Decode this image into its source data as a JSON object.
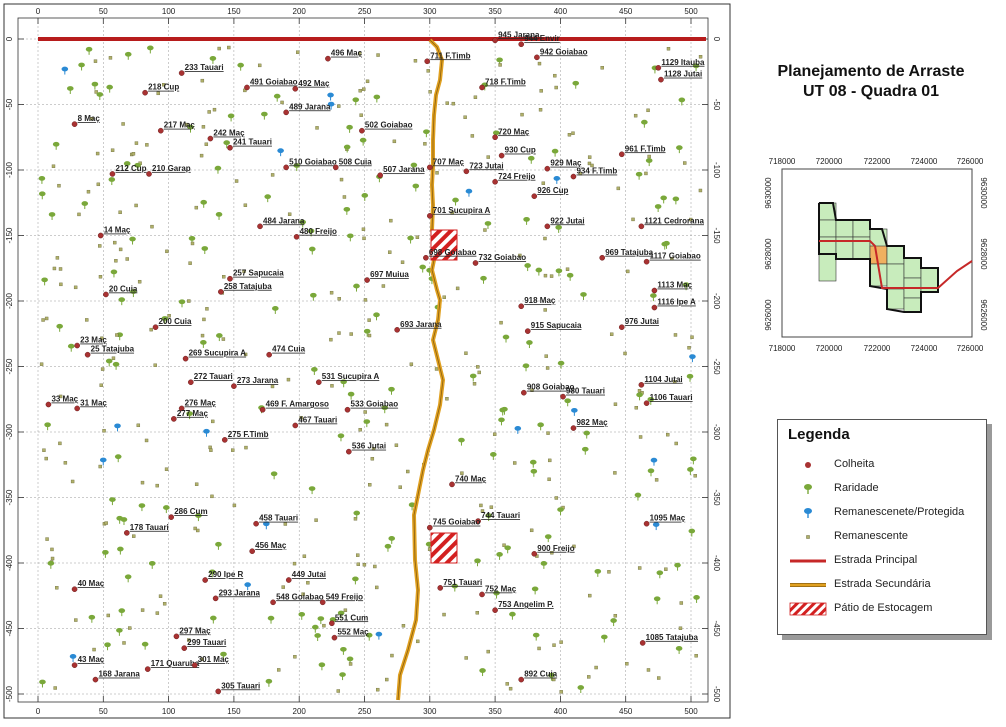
{
  "title": {
    "line1": "Planejamento de Arraste",
    "line2": "UT 08 - Quadra 01"
  },
  "axes": {
    "x_ticks": [
      "0",
      "50",
      "100",
      "150",
      "200",
      "250",
      "300",
      "350",
      "400",
      "450",
      "500"
    ],
    "y_ticks": [
      "0",
      "-50",
      "-100",
      "-150",
      "-200",
      "-250",
      "-300",
      "-350",
      "-400",
      "-450",
      "-500"
    ]
  },
  "legend": {
    "title": "Legenda",
    "items": [
      {
        "label": "Colheita",
        "symbol": "dot",
        "color": "#a83232"
      },
      {
        "label": "Raridade",
        "symbol": "tree",
        "color": "#7aa83a"
      },
      {
        "label": "Remanescenete/Protegida",
        "symbol": "tree",
        "color": "#2a8ad4"
      },
      {
        "label": "Remanescente",
        "symbol": "square",
        "color": "#b0b06a"
      },
      {
        "label": "Estrada Principal",
        "symbol": "line",
        "color": "#c62828"
      },
      {
        "label": "Estrada Secundária",
        "symbol": "line2",
        "color": "#e0a020"
      },
      {
        "label": "Pátio de Estocagem",
        "symbol": "hatch",
        "color": "#d02020"
      }
    ]
  },
  "inset": {
    "x_ticks": [
      "718000",
      "720000",
      "722000",
      "724000",
      "726000"
    ],
    "y_ticks": [
      "9630000",
      "9628000",
      "9626000"
    ]
  },
  "trees": [
    {
      "label": "945 Jarana",
      "x": 350,
      "y": -1
    },
    {
      "label": "944 Envir",
      "x": 370,
      "y": -4
    },
    {
      "label": "942 Goiabao",
      "x": 382,
      "y": -14
    },
    {
      "label": "1129 Itauba",
      "x": 475,
      "y": -22
    },
    {
      "label": "1128 Jutai",
      "x": 477,
      "y": -31
    },
    {
      "label": "711 F.Timb",
      "x": 298,
      "y": -17
    },
    {
      "label": "496 Maç",
      "x": 222,
      "y": -15
    },
    {
      "label": "233 Tauari",
      "x": 110,
      "y": -26
    },
    {
      "label": "491 Goiabao",
      "x": 160,
      "y": -37
    },
    {
      "label": "492 Maç",
      "x": 197,
      "y": -38
    },
    {
      "label": "718 F.Timb",
      "x": 340,
      "y": -37
    },
    {
      "label": "218 Cup",
      "x": 82,
      "y": -41
    },
    {
      "label": "489 Jarana",
      "x": 190,
      "y": -56
    },
    {
      "label": "502 Goiabao",
      "x": 248,
      "y": -70
    },
    {
      "label": "8 Maç",
      "x": 28,
      "y": -65
    },
    {
      "label": "217 Maç",
      "x": 94,
      "y": -70
    },
    {
      "label": "242 Maç",
      "x": 132,
      "y": -76
    },
    {
      "label": "241 Tauari",
      "x": 147,
      "y": -83
    },
    {
      "label": "720 Maç",
      "x": 350,
      "y": -75
    },
    {
      "label": "930 Cup",
      "x": 355,
      "y": -89
    },
    {
      "label": "961 F.Timb",
      "x": 447,
      "y": -88
    },
    {
      "label": "510 Goiabao",
      "x": 190,
      "y": -98
    },
    {
      "label": "508 Cuia",
      "x": 228,
      "y": -98
    },
    {
      "label": "707 Maç",
      "x": 300,
      "y": -98
    },
    {
      "label": "723 Jutai",
      "x": 328,
      "y": -101
    },
    {
      "label": "929 Maç",
      "x": 390,
      "y": -99
    },
    {
      "label": "507 Jarana",
      "x": 262,
      "y": -104
    },
    {
      "label": "934 F.Timb",
      "x": 410,
      "y": -105
    },
    {
      "label": "724 Freijo",
      "x": 350,
      "y": -109
    },
    {
      "label": "212 Cup",
      "x": 57,
      "y": -103
    },
    {
      "label": "210 Garap",
      "x": 85,
      "y": -103
    },
    {
      "label": "926 Cup",
      "x": 380,
      "y": -120
    },
    {
      "label": "701 Sucupira A",
      "x": 300,
      "y": -135
    },
    {
      "label": "922 Jutai",
      "x": 390,
      "y": -143
    },
    {
      "label": "1121 Cedrorana",
      "x": 462,
      "y": -143
    },
    {
      "label": "484 Jarana",
      "x": 170,
      "y": -143
    },
    {
      "label": "14 Maç",
      "x": 48,
      "y": -150
    },
    {
      "label": "480 Freijo",
      "x": 198,
      "y": -151
    },
    {
      "label": "698 Goiabao",
      "x": 297,
      "y": -167
    },
    {
      "label": "732 Goiabao",
      "x": 335,
      "y": -171
    },
    {
      "label": "969 Tatajuba",
      "x": 432,
      "y": -167
    },
    {
      "label": "1117 Goiabao",
      "x": 466,
      "y": -170
    },
    {
      "label": "257 Sapucaia",
      "x": 147,
      "y": -183
    },
    {
      "label": "697 Muiua",
      "x": 252,
      "y": -184
    },
    {
      "label": "258 Tatajuba",
      "x": 140,
      "y": -193
    },
    {
      "label": "1113 Maç",
      "x": 472,
      "y": -192
    },
    {
      "label": "20 Cuia",
      "x": 52,
      "y": -195
    },
    {
      "label": "918 Maç",
      "x": 370,
      "y": -204
    },
    {
      "label": "1116 Ipe A",
      "x": 472,
      "y": -205
    },
    {
      "label": "200 Cuia",
      "x": 90,
      "y": -220
    },
    {
      "label": "693 Jarana",
      "x": 275,
      "y": -222
    },
    {
      "label": "915 Sapucaia",
      "x": 375,
      "y": -223
    },
    {
      "label": "976 Jutai",
      "x": 447,
      "y": -220
    },
    {
      "label": "23 Maç",
      "x": 30,
      "y": -234
    },
    {
      "label": "25 Tatajuba",
      "x": 38,
      "y": -241
    },
    {
      "label": "474 Cuia",
      "x": 177,
      "y": -241
    },
    {
      "label": "269 Sucupira A",
      "x": 113,
      "y": -244
    },
    {
      "label": "272 Tauari",
      "x": 117,
      "y": -262
    },
    {
      "label": "273 Jarana",
      "x": 150,
      "y": -265
    },
    {
      "label": "531 Sucupira A",
      "x": 215,
      "y": -262
    },
    {
      "label": "1104 Jutai",
      "x": 462,
      "y": -264
    },
    {
      "label": "908 Goiabao",
      "x": 372,
      "y": -270
    },
    {
      "label": "980 Tauari",
      "x": 402,
      "y": -273
    },
    {
      "label": "33 Maç",
      "x": 8,
      "y": -279
    },
    {
      "label": "31 Maç",
      "x": 30,
      "y": -282
    },
    {
      "label": "1106 Tauari",
      "x": 466,
      "y": -278
    },
    {
      "label": "276 Maç",
      "x": 110,
      "y": -282
    },
    {
      "label": "469 F. Amargoso",
      "x": 172,
      "y": -283
    },
    {
      "label": "533 Goiabao",
      "x": 237,
      "y": -283
    },
    {
      "label": "277 Maç",
      "x": 104,
      "y": -290
    },
    {
      "label": "467 Tauari",
      "x": 197,
      "y": -295
    },
    {
      "label": "982 Maç",
      "x": 410,
      "y": -297
    },
    {
      "label": "275 F.Timb",
      "x": 143,
      "y": -306
    },
    {
      "label": "536 Jutai",
      "x": 238,
      "y": -315
    },
    {
      "label": "740 Maç",
      "x": 317,
      "y": -340
    },
    {
      "label": "286 Cum",
      "x": 102,
      "y": -365
    },
    {
      "label": "744 Tauari",
      "x": 337,
      "y": -368
    },
    {
      "label": "458 Tauari",
      "x": 167,
      "y": -370
    },
    {
      "label": "1095 Maç",
      "x": 466,
      "y": -370
    },
    {
      "label": "745 Goiabao",
      "x": 300,
      "y": -373
    },
    {
      "label": "178 Tauari",
      "x": 68,
      "y": -377
    },
    {
      "label": "456 Maç",
      "x": 164,
      "y": -391
    },
    {
      "label": "900 Freijo",
      "x": 380,
      "y": -393
    },
    {
      "label": "290 Ipe R",
      "x": 128,
      "y": -413
    },
    {
      "label": "449 Jutai",
      "x": 192,
      "y": -413
    },
    {
      "label": "40 Maç",
      "x": 28,
      "y": -420
    },
    {
      "label": "751 Tauari",
      "x": 308,
      "y": -419
    },
    {
      "label": "752 Maç",
      "x": 340,
      "y": -424
    },
    {
      "label": "293 Jarana",
      "x": 136,
      "y": -427
    },
    {
      "label": "548 Goiabao",
      "x": 180,
      "y": -430
    },
    {
      "label": "549 Freijo",
      "x": 218,
      "y": -430
    },
    {
      "label": "753 Angelim P.",
      "x": 350,
      "y": -436
    },
    {
      "label": "551 Cum",
      "x": 225,
      "y": -446
    },
    {
      "label": "297 Maç",
      "x": 106,
      "y": -456
    },
    {
      "label": "552 Maç",
      "x": 227,
      "y": -457
    },
    {
      "label": "1085 Tatajuba",
      "x": 463,
      "y": -461
    },
    {
      "label": "299 Tauari",
      "x": 112,
      "y": -465
    },
    {
      "label": "43 Maç",
      "x": 28,
      "y": -478
    },
    {
      "label": "171 Quaruba",
      "x": 84,
      "y": -481
    },
    {
      "label": "301 Maç",
      "x": 120,
      "y": -478
    },
    {
      "label": "168 Jarana",
      "x": 44,
      "y": -489
    },
    {
      "label": "892 Cuia",
      "x": 370,
      "y": -489
    },
    {
      "label": "305 Tauari",
      "x": 138,
      "y": -498
    }
  ]
}
